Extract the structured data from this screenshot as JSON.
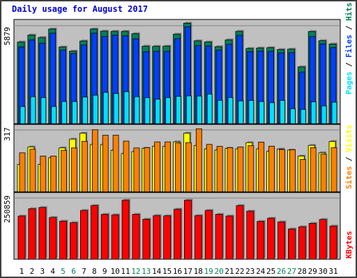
{
  "title": "Daily usage for August 2017",
  "chart_data": [
    {
      "type": "bar",
      "name": "hits-files-pages",
      "ymax_label": "5879",
      "legend": [
        "Pages",
        "/",
        "Files",
        "/",
        "Hits"
      ],
      "categories": [
        "1",
        "2",
        "3",
        "4",
        "5",
        "6",
        "7",
        "8",
        "9",
        "10",
        "11",
        "12",
        "13",
        "14",
        "15",
        "16",
        "17",
        "18",
        "19",
        "20",
        "21",
        "22",
        "23",
        "24",
        "25",
        "26",
        "27",
        "28",
        "29",
        "30",
        "31"
      ],
      "weekend_days": [
        "5",
        "6",
        "12",
        "13",
        "19",
        "20",
        "26",
        "27"
      ],
      "ylim": [
        0,
        5879
      ],
      "series": [
        {
          "name": "Hits",
          "values": [
            4900,
            5320,
            5170,
            5680,
            4600,
            4350,
            4960,
            5680,
            5550,
            5540,
            5540,
            5400,
            4650,
            4640,
            4650,
            5370,
            6030,
            4970,
            4900,
            4620,
            5030,
            5540,
            4510,
            4540,
            4560,
            4450,
            4470,
            3410,
            5530,
            4980,
            4780
          ]
        },
        {
          "name": "Files",
          "values": [
            4600,
            5030,
            4830,
            5430,
            4420,
            4210,
            4720,
            5430,
            5240,
            5320,
            5270,
            5090,
            4320,
            4340,
            4340,
            5100,
            5820,
            4690,
            4660,
            4420,
            4760,
            5300,
            4320,
            4360,
            4340,
            4250,
            4260,
            3090,
            5230,
            4790,
            4570
          ]
        },
        {
          "name": "Pages",
          "values": [
            1030,
            1620,
            1570,
            1030,
            1330,
            1330,
            1600,
            1710,
            1880,
            1810,
            1920,
            1620,
            1570,
            1470,
            1570,
            1640,
            1670,
            1660,
            1780,
            1400,
            1570,
            1370,
            1400,
            1330,
            1260,
            1400,
            900,
            860,
            1310,
            1070,
            1290
          ]
        }
      ]
    },
    {
      "type": "bar",
      "name": "visits-sites",
      "ymax_label": "317",
      "legend": [
        "Sites",
        "/",
        "Visits"
      ],
      "categories": [
        "1",
        "2",
        "3",
        "4",
        "5",
        "6",
        "7",
        "8",
        "9",
        "10",
        "11",
        "12",
        "13",
        "14",
        "15",
        "16",
        "17",
        "18",
        "19",
        "20",
        "21",
        "22",
        "23",
        "24",
        "25",
        "26",
        "27",
        "28",
        "29",
        "30",
        "31"
      ],
      "ylim": [
        0,
        317
      ],
      "series": [
        {
          "name": "Visits",
          "values": [
            140,
            230,
            140,
            175,
            225,
            270,
            300,
            242,
            242,
            213,
            196,
            206,
            223,
            234,
            233,
            256,
            300,
            237,
            220,
            214,
            223,
            220,
            252,
            220,
            208,
            219,
            214,
            183,
            238,
            200,
            258
          ]
        },
        {
          "name": "Sites",
          "values": [
            200,
            219,
            183,
            183,
            213,
            225,
            259,
            318,
            290,
            290,
            260,
            225,
            226,
            256,
            256,
            250,
            252,
            323,
            243,
            233,
            226,
            230,
            237,
            255,
            234,
            217,
            216,
            166,
            226,
            193,
            226
          ]
        }
      ]
    },
    {
      "type": "bar",
      "name": "kbytes",
      "ymax_label": "250859",
      "legend": [
        "KBytes"
      ],
      "categories": [
        "1",
        "2",
        "3",
        "4",
        "5",
        "6",
        "7",
        "8",
        "9",
        "10",
        "11",
        "12",
        "13",
        "14",
        "15",
        "16",
        "17",
        "18",
        "19",
        "20",
        "21",
        "22",
        "23",
        "24",
        "25",
        "26",
        "27",
        "28",
        "29",
        "30",
        "31"
      ],
      "ylim": [
        0,
        250859
      ],
      "series": [
        {
          "name": "KBytes",
          "values": [
            177000,
            207000,
            212000,
            171000,
            156000,
            150000,
            200000,
            220000,
            184000,
            182000,
            242000,
            184000,
            164000,
            179000,
            178000,
            205000,
            242000,
            179000,
            200000,
            184000,
            177000,
            220000,
            197000,
            155000,
            168000,
            153000,
            124000,
            133000,
            147000,
            163000,
            136000
          ]
        }
      ]
    }
  ],
  "colors": {
    "background": "#c0c0c0",
    "hits": "#00805c",
    "files": "#0040ff",
    "pages": "#00e0ff",
    "visits": "#ffff00",
    "sites": "#ff8000",
    "kbytes": "#ff0000",
    "title": "#0000cc",
    "weekend": "#00805c",
    "weekday": "#000000"
  }
}
